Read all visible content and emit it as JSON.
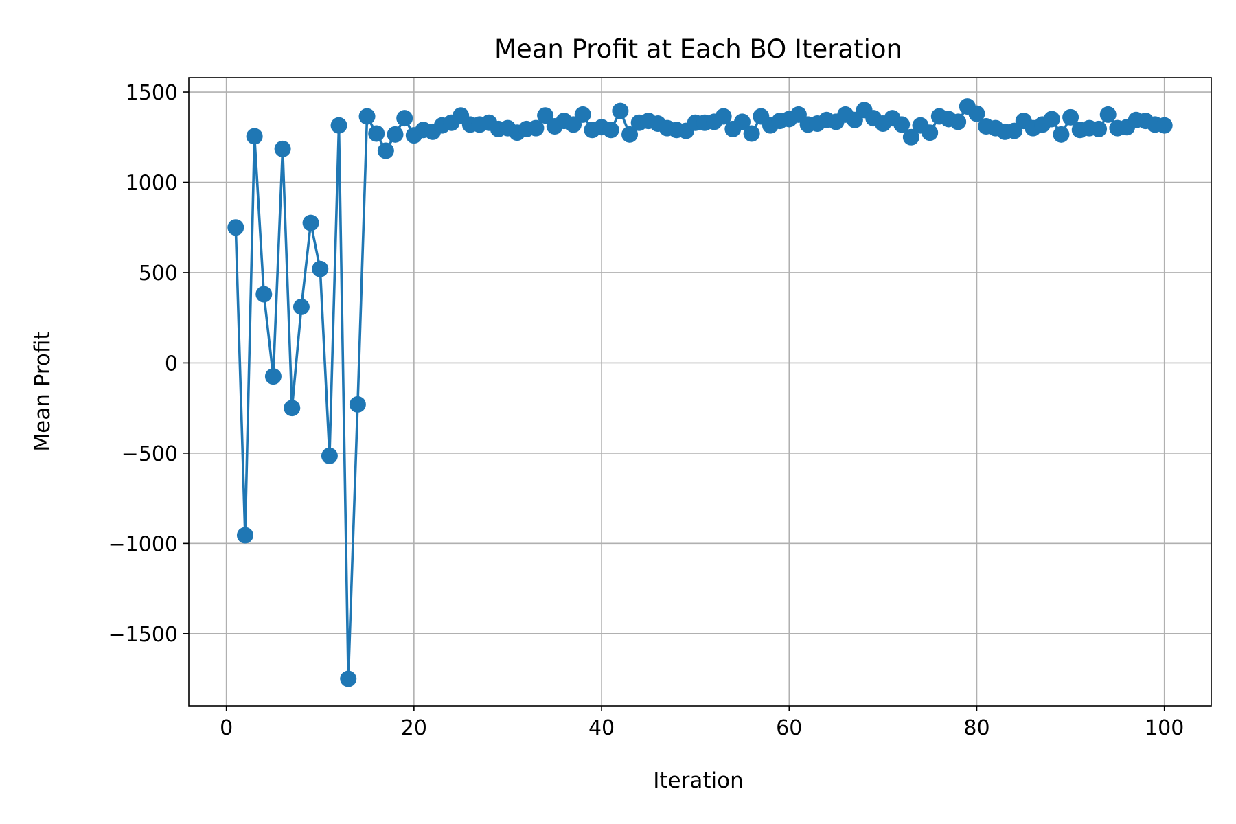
{
  "chart_data": {
    "type": "line",
    "title": "Mean Profit at Each BO Iteration",
    "xlabel": "Iteration",
    "ylabel": "Mean Profit",
    "xlim": [
      -4,
      105
    ],
    "ylim": [
      -1900,
      1580
    ],
    "xticks": [
      0,
      20,
      40,
      60,
      80,
      100
    ],
    "yticks": [
      -1500,
      -1000,
      -500,
      0,
      500,
      1000,
      1500
    ],
    "xtick_labels": [
      "0",
      "20",
      "40",
      "60",
      "80",
      "100"
    ],
    "ytick_labels": [
      "−1500",
      "−1000",
      "−500",
      "0",
      "500",
      "1000",
      "1500"
    ],
    "grid": true,
    "marker": "circle",
    "color": "#1f77b4",
    "series": [
      {
        "x": [
          1,
          2,
          3,
          4,
          5,
          6,
          7,
          8,
          9,
          10,
          11,
          12,
          13,
          14,
          15,
          16,
          17,
          18,
          19,
          20,
          21,
          22,
          23,
          24,
          25,
          26,
          27,
          28,
          29,
          30,
          31,
          32,
          33,
          34,
          35,
          36,
          37,
          38,
          39,
          40,
          41,
          42,
          43,
          44,
          45,
          46,
          47,
          48,
          49,
          50,
          51,
          52,
          53,
          54,
          55,
          56,
          57,
          58,
          59,
          60,
          61,
          62,
          63,
          64,
          65,
          66,
          67,
          68,
          69,
          70,
          71,
          72,
          73,
          74,
          75,
          76,
          77,
          78,
          79,
          80,
          81,
          82,
          83,
          84,
          85,
          86,
          87,
          88,
          89,
          90,
          91,
          92,
          93,
          94,
          95,
          96,
          97,
          98,
          99,
          100
        ],
        "values": [
          750,
          -955,
          1255,
          380,
          -75,
          1185,
          -250,
          310,
          775,
          520,
          -515,
          1315,
          -1750,
          -230,
          1365,
          1270,
          1175,
          1265,
          1355,
          1260,
          1290,
          1280,
          1315,
          1330,
          1370,
          1320,
          1320,
          1330,
          1295,
          1300,
          1275,
          1295,
          1300,
          1370,
          1310,
          1340,
          1320,
          1375,
          1290,
          1305,
          1290,
          1395,
          1265,
          1330,
          1340,
          1325,
          1300,
          1290,
          1285,
          1330,
          1330,
          1335,
          1365,
          1295,
          1335,
          1270,
          1365,
          1315,
          1340,
          1350,
          1375,
          1320,
          1325,
          1345,
          1335,
          1375,
          1345,
          1400,
          1355,
          1325,
          1355,
          1320,
          1250,
          1315,
          1275,
          1365,
          1350,
          1335,
          1420,
          1380,
          1310,
          1300,
          1280,
          1285,
          1340,
          1300,
          1320,
          1350,
          1265,
          1360,
          1290,
          1300,
          1295,
          1375,
          1300,
          1305,
          1345,
          1340,
          1320,
          1315
        ]
      }
    ]
  }
}
